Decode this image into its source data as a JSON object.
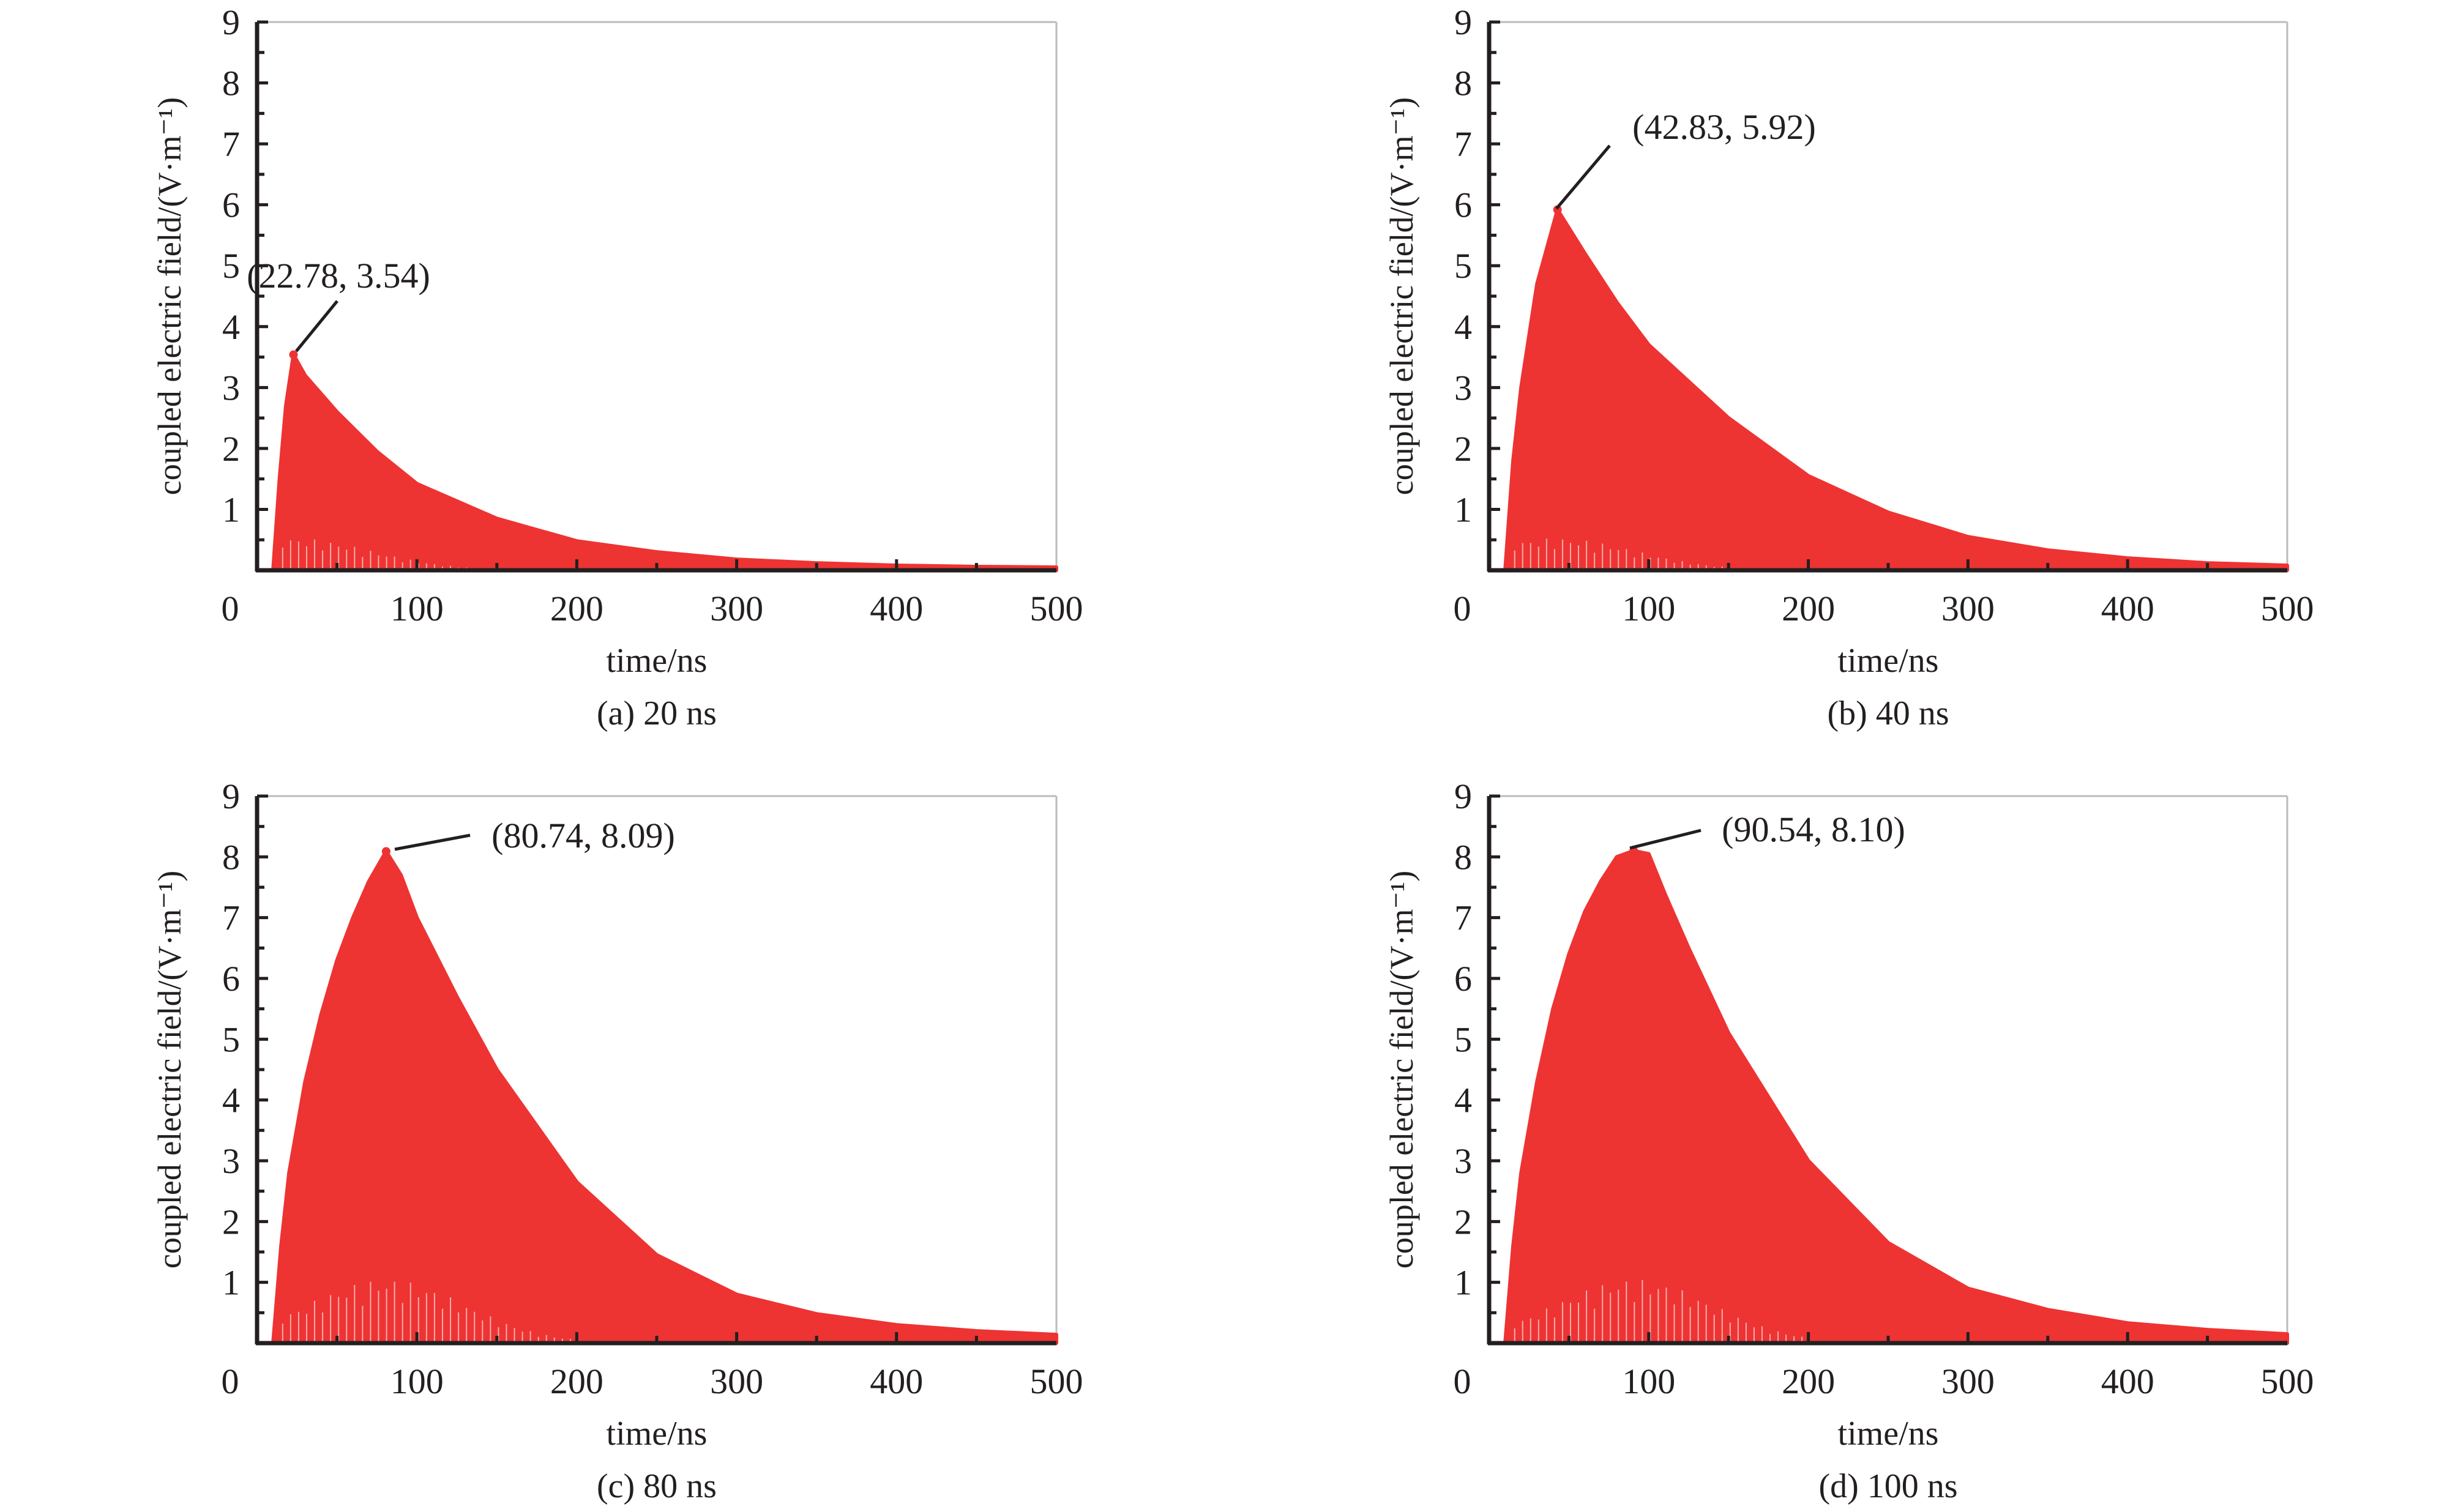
{
  "colors": {
    "fill": "#EE3333",
    "axis": "#231f20",
    "frame": "#bbbbbb"
  },
  "chart_data": [
    {
      "type": "area",
      "caption": "(a) 20 ns",
      "xlabel": "time/ns",
      "ylabel": "coupled electric field/(V·m⁻¹)",
      "xlim": [
        0,
        500
      ],
      "ylim": [
        0,
        9
      ],
      "xticks": [
        "0",
        "100",
        "200",
        "300",
        "400",
        "500"
      ],
      "yticks": [
        "1",
        "2",
        "3",
        "4",
        "5",
        "6",
        "7",
        "8",
        "9"
      ],
      "peak": {
        "x": 22.78,
        "y": 3.54,
        "label": "(22.78, 3.54)"
      },
      "envelope": {
        "x": [
          10,
          14,
          18,
          22.78,
          30,
          50,
          75,
          100,
          150,
          200,
          250,
          300,
          350,
          400,
          450,
          500
        ],
        "y": [
          0,
          1.5,
          2.7,
          3.54,
          3.2,
          2.6,
          1.95,
          1.42,
          0.85,
          0.48,
          0.3,
          0.18,
          0.12,
          0.08,
          0.06,
          0.05
        ]
      }
    },
    {
      "type": "area",
      "caption": "(b) 40 ns",
      "xlabel": "time/ns",
      "ylabel": "coupled electric field/(V·m⁻¹)",
      "xlim": [
        0,
        500
      ],
      "ylim": [
        0,
        9
      ],
      "xticks": [
        "0",
        "100",
        "200",
        "300",
        "400",
        "500"
      ],
      "yticks": [
        "1",
        "2",
        "3",
        "4",
        "5",
        "6",
        "7",
        "8",
        "9"
      ],
      "peak": {
        "x": 42.83,
        "y": 5.92,
        "label": "(42.83, 5.92)"
      },
      "envelope": {
        "x": [
          10,
          15,
          20,
          30,
          42.83,
          60,
          80,
          100,
          150,
          200,
          250,
          300,
          350,
          400,
          450,
          500
        ],
        "y": [
          0,
          1.8,
          3.0,
          4.7,
          5.92,
          5.2,
          4.4,
          3.7,
          2.5,
          1.55,
          0.95,
          0.55,
          0.33,
          0.2,
          0.12,
          0.08
        ]
      }
    },
    {
      "type": "area",
      "caption": "(c) 80 ns",
      "xlabel": "time/ns",
      "ylabel": "coupled electric field/(V·m⁻¹)",
      "xlim": [
        0,
        500
      ],
      "ylim": [
        0,
        9
      ],
      "xticks": [
        "0",
        "100",
        "200",
        "300",
        "400",
        "500"
      ],
      "yticks": [
        "1",
        "2",
        "3",
        "4",
        "5",
        "6",
        "7",
        "8",
        "9"
      ],
      "peak": {
        "x": 80.74,
        "y": 8.09,
        "label": "(80.74, 8.09)"
      },
      "envelope": {
        "x": [
          10,
          15,
          20,
          30,
          40,
          50,
          60,
          70,
          80.74,
          90,
          100,
          125,
          150,
          200,
          250,
          300,
          350,
          400,
          450,
          500
        ],
        "y": [
          0,
          1.6,
          2.8,
          4.3,
          5.4,
          6.3,
          7.0,
          7.6,
          8.09,
          7.7,
          7.0,
          5.7,
          4.5,
          2.65,
          1.45,
          0.8,
          0.48,
          0.3,
          0.2,
          0.14
        ]
      }
    },
    {
      "type": "area",
      "caption": "(d) 100 ns",
      "xlabel": "time/ns",
      "ylabel": "coupled electric field/(V·m⁻¹)",
      "xlim": [
        0,
        500
      ],
      "ylim": [
        0,
        9
      ],
      "xticks": [
        "0",
        "100",
        "200",
        "300",
        "400",
        "500"
      ],
      "yticks": [
        "1",
        "2",
        "3",
        "4",
        "5",
        "6",
        "7",
        "8",
        "9"
      ],
      "peak": {
        "x": 90.54,
        "y": 8.1,
        "label": "(90.54, 8.10)"
      },
      "envelope": {
        "x": [
          10,
          15,
          20,
          30,
          40,
          50,
          60,
          70,
          80,
          90.54,
          100,
          110,
          125,
          150,
          200,
          250,
          300,
          350,
          400,
          450,
          500
        ],
        "y": [
          0,
          1.6,
          2.8,
          4.3,
          5.5,
          6.4,
          7.1,
          7.6,
          8.0,
          8.1,
          8.05,
          7.4,
          6.5,
          5.1,
          3.0,
          1.65,
          0.9,
          0.55,
          0.33,
          0.22,
          0.15
        ]
      }
    }
  ]
}
